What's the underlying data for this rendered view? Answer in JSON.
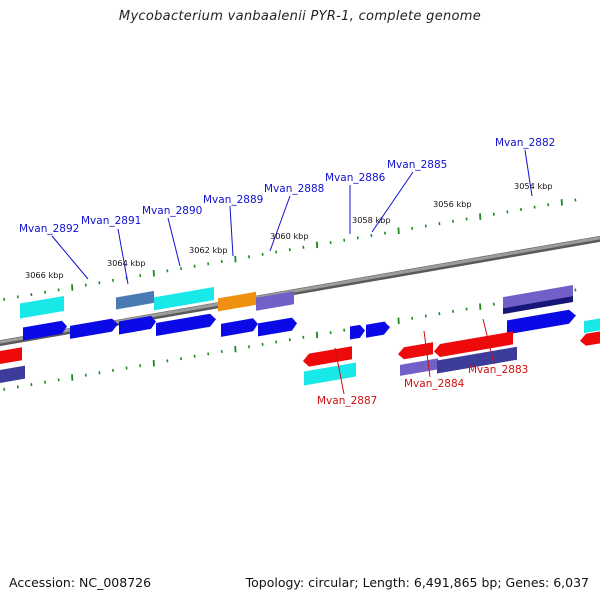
{
  "title": "Mycobacterium vanbaalenii PYR-1, complete genome",
  "footer": {
    "accession": "Accession: NC_008726",
    "summary": "Topology: circular; Length: 6,491,865 bp; Genes: 6,037"
  },
  "colors": {
    "blue": "#0a0ae6",
    "cyan": "#18e8e8",
    "red": "#ee0a0a",
    "slate": "#3c3c9a",
    "purple": "#7060c8",
    "steel": "#4a7ab4",
    "orange": "#f09010",
    "navy": "#16167a",
    "backbone": "#8a8a8a",
    "ticks": "#1a8a1a",
    "label_blue": "#1010d0",
    "label_red": "#d01010"
  },
  "ticks": [
    {
      "label": "3066 kbp"
    },
    {
      "label": "3064 kbp"
    },
    {
      "label": "3062 kbp"
    },
    {
      "label": "3060 kbp"
    },
    {
      "label": "3058 kbp"
    },
    {
      "label": "3056 kbp"
    },
    {
      "label": "3054 kbp"
    }
  ],
  "genes": [
    {
      "label": "Mvan_2892",
      "strand": "top"
    },
    {
      "label": "Mvan_2891",
      "strand": "top"
    },
    {
      "label": "Mvan_2890",
      "strand": "top"
    },
    {
      "label": "Mvan_2889",
      "strand": "top"
    },
    {
      "label": "Mvan_2888",
      "strand": "top"
    },
    {
      "label": "Mvan_2886",
      "strand": "top"
    },
    {
      "label": "Mvan_2885",
      "strand": "top"
    },
    {
      "label": "Mvan_2882",
      "strand": "top"
    },
    {
      "label": "Mvan_2887",
      "strand": "bottom"
    },
    {
      "label": "Mvan_2884",
      "strand": "bottom"
    },
    {
      "label": "Mvan_2883",
      "strand": "bottom"
    }
  ]
}
